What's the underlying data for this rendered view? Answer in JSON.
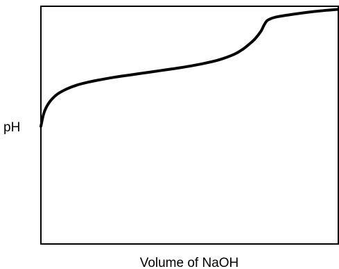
{
  "chart_data": {
    "type": "line",
    "title": "",
    "xlabel": "Volume of NaOH",
    "ylabel": "pH",
    "grid": false,
    "legend": "none",
    "ticks": "none",
    "xlim": [
      0,
      100
    ],
    "ylim": [
      0,
      100
    ],
    "series": [
      {
        "values_note_free": true,
        "x": [
          0,
          1,
          2.5,
          5,
          8,
          12,
          16,
          20,
          25,
          30,
          35,
          40,
          45,
          50,
          55,
          60,
          65,
          68,
          70,
          72,
          74,
          75,
          76,
          77,
          78,
          80,
          84,
          88,
          92,
          96,
          100
        ],
        "y": [
          49.5,
          55,
          59,
          62.5,
          64.8,
          66.8,
          68.1,
          69.1,
          70.2,
          71.1,
          72,
          72.9,
          73.8,
          74.8,
          76,
          77.5,
          79.8,
          82,
          84,
          86.3,
          89.5,
          92,
          93.9,
          94.6,
          95.1,
          95.7,
          96.5,
          97.2,
          97.8,
          98.3,
          98.7
        ]
      }
    ],
    "colors": {
      "line": "#000000",
      "frame": "#000000",
      "background": "#ffffff"
    }
  }
}
